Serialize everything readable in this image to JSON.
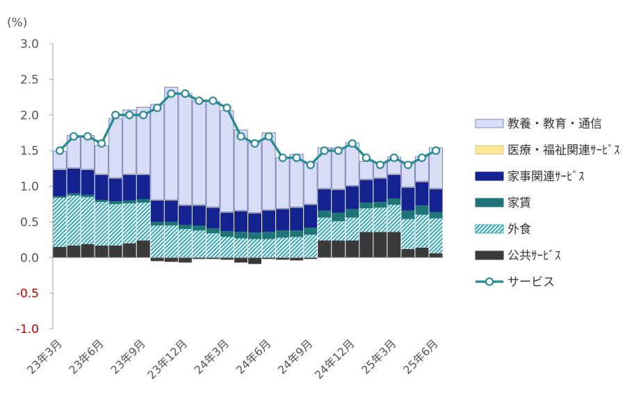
{
  "chart_data": {
    "type": "bar",
    "y_unit": "(%)",
    "ylim": [
      -1.0,
      3.0
    ],
    "yticks": [
      "3.0",
      "2.5",
      "2.0",
      "1.5",
      "1.0",
      "0.5",
      "0.0",
      "-0.5",
      "-1.0"
    ],
    "grid": false,
    "legend_position": "right",
    "x_tick_labels": [
      "23年3月",
      "23年6月",
      "23年9月",
      "23年12月",
      "24年3月",
      "24年6月",
      "24年9月",
      "24年12月",
      "25年3月",
      "25年6月"
    ],
    "categories": [
      "23年3月",
      "23年4月",
      "23年5月",
      "23年6月",
      "23年7月",
      "23年8月",
      "23年9月",
      "23年10月",
      "23年11月",
      "23年12月",
      "24年1月",
      "24年2月",
      "24年3月",
      "24年4月",
      "24年5月",
      "24年6月",
      "24年7月",
      "24年8月",
      "24年9月",
      "24年10月",
      "24年11月",
      "24年12月",
      "25年1月",
      "25年2月",
      "25年3月",
      "25年4月",
      "25年5月",
      "25年6月"
    ],
    "series": [
      {
        "name": "公共ｻｰﾋﾞｽ",
        "kind": "bar",
        "color": "#3a3a3a",
        "values": [
          0.15,
          0.17,
          0.19,
          0.17,
          0.17,
          0.2,
          0.24,
          -0.05,
          -0.06,
          -0.07,
          -0.02,
          -0.02,
          -0.03,
          -0.07,
          -0.09,
          -0.02,
          -0.03,
          -0.04,
          -0.02,
          0.24,
          0.24,
          0.24,
          0.36,
          0.36,
          0.36,
          0.12,
          0.14,
          0.06
        ]
      },
      {
        "name": "外食",
        "kind": "bar",
        "color": "#2aa8b8",
        "values": [
          0.69,
          0.7,
          0.66,
          0.61,
          0.58,
          0.56,
          0.53,
          0.45,
          0.45,
          0.4,
          0.38,
          0.34,
          0.29,
          0.27,
          0.26,
          0.26,
          0.28,
          0.29,
          0.32,
          0.32,
          0.27,
          0.32,
          0.33,
          0.34,
          0.38,
          0.42,
          0.46,
          0.49
        ]
      },
      {
        "name": "家賃",
        "kind": "bar",
        "color": "#1f7478",
        "values": [
          0.02,
          0.03,
          0.03,
          0.03,
          0.04,
          0.04,
          0.05,
          0.05,
          0.05,
          0.06,
          0.07,
          0.07,
          0.08,
          0.09,
          0.09,
          0.1,
          0.1,
          0.09,
          0.1,
          0.1,
          0.12,
          0.12,
          0.08,
          0.08,
          0.09,
          0.12,
          0.13,
          0.09
        ]
      },
      {
        "name": "家事関連ｻｰﾋﾞｽ",
        "kind": "bar",
        "color": "#14238f",
        "values": [
          0.37,
          0.35,
          0.35,
          0.35,
          0.32,
          0.36,
          0.34,
          0.3,
          0.3,
          0.27,
          0.28,
          0.29,
          0.26,
          0.29,
          0.27,
          0.3,
          0.3,
          0.32,
          0.32,
          0.3,
          0.32,
          0.32,
          0.32,
          0.33,
          0.33,
          0.32,
          0.33,
          0.32
        ]
      },
      {
        "name": "医療・福祉関連ｻｰﾋﾞｽ",
        "kind": "bar",
        "color": "#fde89a",
        "values": [
          0.01,
          0.01,
          0.01,
          0.01,
          0.01,
          0.01,
          0.01,
          0.01,
          0.01,
          0.01,
          0.01,
          0.01,
          0.01,
          0.01,
          0.01,
          0.01,
          0.01,
          0.01,
          0.01,
          0.01,
          0.01,
          0.01,
          0.01,
          0.01,
          0.01,
          0.01,
          0.01,
          0.01
        ]
      },
      {
        "name": "教養・教育・通信",
        "kind": "bar",
        "color": "#d8dcf5",
        "values": [
          0.25,
          0.45,
          0.47,
          0.4,
          0.83,
          0.9,
          0.94,
          1.34,
          1.58,
          1.56,
          1.46,
          1.48,
          1.42,
          1.13,
          0.98,
          1.08,
          0.71,
          0.74,
          0.58,
          0.57,
          0.58,
          0.6,
          0.25,
          0.22,
          0.24,
          0.33,
          0.35,
          0.57
        ]
      },
      {
        "name": "サービス",
        "kind": "line",
        "color": "#2e8b96",
        "values": [
          1.5,
          1.7,
          1.7,
          1.6,
          2.0,
          2.0,
          2.0,
          2.1,
          2.3,
          2.3,
          2.2,
          2.2,
          2.1,
          1.7,
          1.6,
          1.7,
          1.4,
          1.4,
          1.3,
          1.5,
          1.5,
          1.6,
          1.4,
          1.3,
          1.4,
          1.3,
          1.4,
          1.5
        ]
      }
    ],
    "legend": [
      {
        "key": "edu",
        "label": "教養・教育・通信"
      },
      {
        "key": "med",
        "label": "医療・福祉関連ｻｰﾋﾞｽ"
      },
      {
        "key": "house",
        "label": "家事関連ｻｰﾋﾞｽ"
      },
      {
        "key": "rent",
        "label": "家賃"
      },
      {
        "key": "eat",
        "label": "外食"
      },
      {
        "key": "pub",
        "label": "公共ｻｰﾋﾞｽ"
      },
      {
        "key": "svc",
        "label": "サービス"
      }
    ],
    "colors": {
      "edu_fill": "#d8dcf5",
      "edu_stroke": "#7b86b8",
      "med_fill": "#fde89a",
      "house": "#14238f",
      "rent": "#1f7478",
      "eat_bg": "#ffffff",
      "eat_hatch": "#2aa8b8",
      "pub": "#3a3a3a",
      "line": "#2e8b96",
      "axis": "#a0a0a0",
      "tick_text": "#555555",
      "neg_text": "#c00000"
    }
  }
}
